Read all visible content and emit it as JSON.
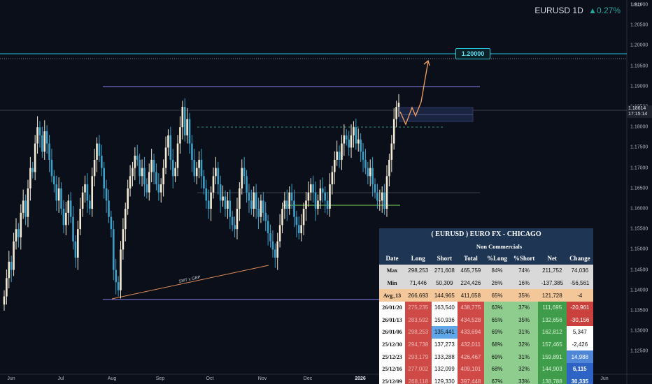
{
  "header": {
    "symbol": "EURUSD 1D",
    "change": "▲0.27%"
  },
  "axis_unit": "USD",
  "price_tag": {
    "price": "1.18614",
    "countdown": "17:15:14"
  },
  "target_label": "1.20000",
  "annotation": "SMT x GBP",
  "colors": {
    "up": "#f2ead2",
    "down": "#3aa0c8",
    "accent": "#26c6da",
    "range": "#8a82f0",
    "support": "#7ed957",
    "projection": "#f4a261"
  },
  "chart_data": {
    "type": "candlestick",
    "y_axis": {
      "min": 1.12,
      "max": 1.215,
      "ticks": [
        "1.21000",
        "1.20500",
        "1.20000",
        "1.19500",
        "1.19000",
        "1.18500",
        "1.18000",
        "1.17500",
        "1.17000",
        "1.16500",
        "1.16000",
        "1.15500",
        "1.15000",
        "1.14500",
        "1.14000",
        "1.13500",
        "1.13000",
        "1.12500"
      ]
    },
    "x_axis": {
      "ticks": [
        "Jun",
        "Jul",
        "Aug",
        "Sep",
        "Oct",
        "Nov",
        "Dec",
        "2026",
        "Feb",
        "Mar",
        "Apr",
        "May",
        "Jun"
      ]
    },
    "levels": {
      "target": 1.2,
      "range_high": 1.192,
      "range_low": 1.139,
      "support": 1.1625,
      "prior_high": 1.1815
    },
    "close_series": [
      1.1385,
      1.143,
      1.147,
      1.145,
      1.152,
      1.155,
      1.153,
      1.159,
      1.162,
      1.158,
      1.165,
      1.17,
      1.169,
      1.176,
      1.18,
      1.178,
      1.174,
      1.179,
      1.176,
      1.172,
      1.168,
      1.166,
      1.162,
      1.165,
      1.16,
      1.156,
      1.159,
      1.162,
      1.158,
      1.152,
      1.148,
      1.155,
      1.16,
      1.164,
      1.166,
      1.162,
      1.16,
      1.168,
      1.172,
      1.176,
      1.173,
      1.17,
      1.165,
      1.162,
      1.158,
      1.155,
      1.145,
      1.142,
      1.14,
      1.15,
      1.155,
      1.16,
      1.165,
      1.168,
      1.17,
      1.173,
      1.172,
      1.168,
      1.17,
      1.166,
      1.164,
      1.169,
      1.172,
      1.169,
      1.166,
      1.164,
      1.166,
      1.17,
      1.175,
      1.178,
      1.172,
      1.168,
      1.17,
      1.176,
      1.18,
      1.185,
      1.178,
      1.182,
      1.176,
      1.172,
      1.168,
      1.17,
      1.172,
      1.168,
      1.165,
      1.162,
      1.16,
      1.164,
      1.168,
      1.17,
      1.166,
      1.162,
      1.163,
      1.16,
      1.162,
      1.158,
      1.156,
      1.155,
      1.16,
      1.165,
      1.17,
      1.168,
      1.164,
      1.162,
      1.16,
      1.164,
      1.16,
      1.158,
      1.162,
      1.159,
      1.157,
      1.154,
      1.152,
      1.15,
      1.148,
      1.152,
      1.156,
      1.16,
      1.162,
      1.16,
      1.164,
      1.162,
      1.158,
      1.156,
      1.154,
      1.156,
      1.16,
      1.162,
      1.164,
      1.166,
      1.164,
      1.16,
      1.162,
      1.165,
      1.164,
      1.162,
      1.16,
      1.166,
      1.169,
      1.172,
      1.174,
      1.172,
      1.176,
      1.178,
      1.177,
      1.175,
      1.178,
      1.18,
      1.176,
      1.177,
      1.174,
      1.172,
      1.17,
      1.168,
      1.17,
      1.166,
      1.164,
      1.162,
      1.162,
      1.164,
      1.16,
      1.168,
      1.172,
      1.176,
      1.182,
      1.185,
      1.186
    ]
  },
  "cot_table": {
    "title": "( EURUSD ) EURO FX - CHICAGO",
    "group": "Non Commercials",
    "columns": [
      "Date",
      "Long",
      "Short",
      "Total",
      "%Long",
      "%Short",
      "Net",
      "Change"
    ],
    "stats": [
      {
        "label": "Max",
        "values": [
          "298,253",
          "271,608",
          "465,759",
          "84%",
          "74%",
          "211,752",
          "74,036"
        ]
      },
      {
        "label": "Min",
        "values": [
          "71,446",
          "50,309",
          "224,426",
          "26%",
          "16%",
          "-137,385",
          "-56,561"
        ]
      }
    ],
    "avg": {
      "label": "Avg_13",
      "values": [
        "266,693",
        "144,965",
        "411,658",
        "65%",
        "35%",
        "121,728",
        "-4"
      ]
    },
    "rows": [
      {
        "date": "26/01/20",
        "values": [
          "275,235",
          "163,540",
          "438,775",
          "63%",
          "37%",
          "111,695",
          "-20,961"
        ],
        "short_style": "c-short",
        "change_style": "ch-red"
      },
      {
        "date": "26/01/13",
        "values": [
          "283,592",
          "150,936",
          "434,528",
          "65%",
          "35%",
          "132,656",
          "-30,156"
        ],
        "short_style": "c-short",
        "change_style": "ch-red"
      },
      {
        "date": "26/01/06",
        "values": [
          "298,253",
          "135,441",
          "433,694",
          "69%",
          "31%",
          "162,812",
          "5,347"
        ],
        "short_style": "c-short-blue",
        "change_style": "ch-white"
      },
      {
        "date": "25/12/30",
        "values": [
          "294,738",
          "137,273",
          "432,011",
          "68%",
          "32%",
          "157,465",
          "-2,426"
        ],
        "short_style": "c-short",
        "change_style": "ch-white"
      },
      {
        "date": "25/12/23",
        "values": [
          "293,179",
          "133,288",
          "426,467",
          "69%",
          "31%",
          "159,891",
          "14,988"
        ],
        "short_style": "c-short",
        "change_style": "ch-blue"
      },
      {
        "date": "25/12/16",
        "values": [
          "277,002",
          "132,099",
          "409,101",
          "68%",
          "32%",
          "144,903",
          "6,115"
        ],
        "short_style": "c-short",
        "change_style": "ch-dblue"
      },
      {
        "date": "25/12/09",
        "values": [
          "268,118",
          "129,330",
          "397,448",
          "67%",
          "33%",
          "138,788",
          "30,335"
        ],
        "short_style": "c-short",
        "change_style": "ch-dblue"
      }
    ]
  }
}
